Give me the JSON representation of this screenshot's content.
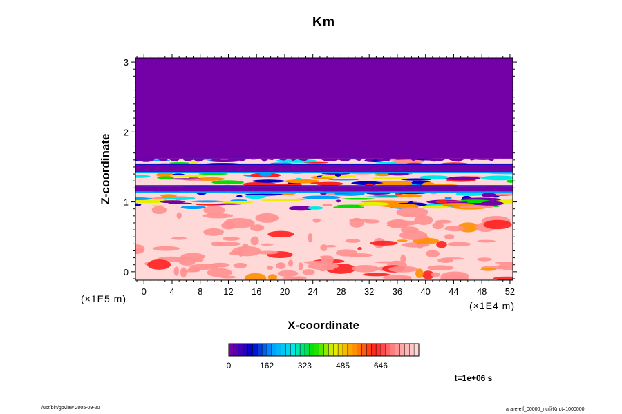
{
  "chart_data": {
    "type": "heatmap",
    "title": "Km",
    "xlabel": "X-coordinate",
    "ylabel": "Z-coordinate",
    "x_ticks": [
      "0",
      "4",
      "8",
      "12",
      "16",
      "20",
      "24",
      "28",
      "32",
      "36",
      "40",
      "44",
      "48",
      "52"
    ],
    "x_tick_values": [
      0,
      4,
      8,
      12,
      16,
      20,
      24,
      28,
      32,
      36,
      40,
      44,
      48,
      52
    ],
    "x_range": [
      -1.2,
      52.4
    ],
    "x_scale_label": "(×1E4 m)",
    "y_ticks": [
      "0",
      "1",
      "2",
      "3"
    ],
    "y_tick_values": [
      0,
      1,
      2,
      3
    ],
    "y_range": [
      -0.12,
      3.06
    ],
    "y_scale_label": "(×1E5 m)",
    "colorbar": {
      "ticks": [
        "0",
        "162",
        "323",
        "485",
        "646"
      ],
      "tick_values": [
        0,
        162,
        323,
        485,
        646
      ],
      "range": [
        0,
        808
      ],
      "colors": [
        "#7400a8",
        "#0000c8",
        "#00a0ff",
        "#00e8e8",
        "#00e000",
        "#e8f000",
        "#ff9000",
        "#ff2020",
        "#ff9090",
        "#ffd8d8"
      ]
    },
    "field_summary": {
      "uniform_low_region": {
        "z_min": 1.62,
        "z_max": 3.06,
        "value": 0
      },
      "low_bands_z": [
        [
          1.43,
          1.53
        ],
        [
          1.15,
          1.22
        ]
      ],
      "high_mixing_region": {
        "z_min": -0.12,
        "z_max": 0.9
      }
    }
  },
  "time_label": "t=1e+06 s",
  "footer": {
    "left": "/usr/bin/gpview 2005-09-20",
    "right": "arare-elf_00000_nc@Km,t=1000000"
  }
}
